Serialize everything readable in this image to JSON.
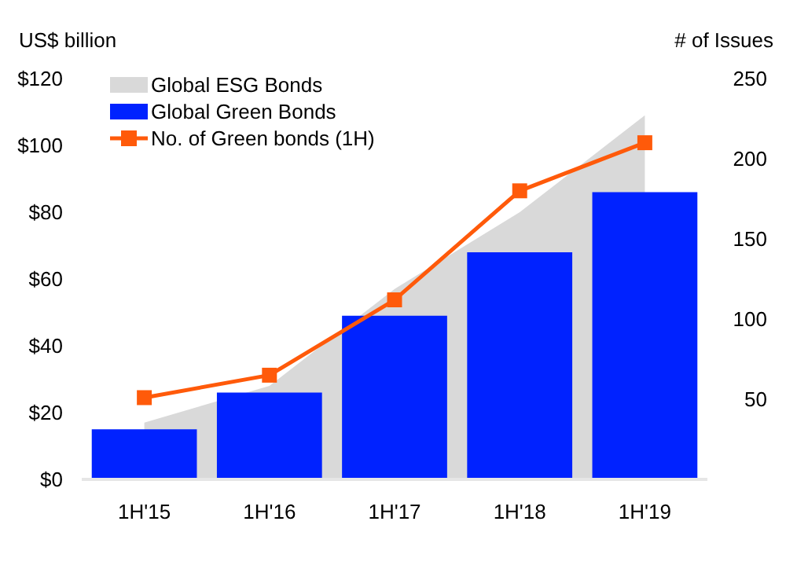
{
  "chart_data": {
    "type": "bar",
    "ylabel": "US$ billion",
    "y2label": "# of Issues",
    "categories": [
      "1H'15",
      "1H'16",
      "1H'17",
      "1H'18",
      "1H'19"
    ],
    "series": [
      {
        "name": "Global ESG Bonds",
        "type": "area",
        "color": "#d9d9d9",
        "values": [
          17,
          28,
          57,
          80,
          109
        ]
      },
      {
        "name": "Global Green Bonds",
        "color": "#0022ff",
        "values": [
          15,
          26,
          49,
          68,
          86
        ]
      },
      {
        "name": "No. of Green bonds (1H)",
        "type": "line",
        "axis": "y2",
        "marker": "square",
        "color": "#ff5a0a",
        "values": [
          51,
          65,
          112,
          180,
          210
        ]
      }
    ],
    "ylim": [
      0,
      120
    ],
    "yticks": [
      {
        "value": 0,
        "label": "$0"
      },
      {
        "value": 20,
        "label": "$20"
      },
      {
        "value": 40,
        "label": "$40"
      },
      {
        "value": 60,
        "label": "$60"
      },
      {
        "value": 80,
        "label": "$80"
      },
      {
        "value": 100,
        "label": "$100"
      },
      {
        "value": 120,
        "label": "$120"
      }
    ],
    "y2lim": [
      0,
      250
    ],
    "y2ticks": [
      50,
      100,
      150,
      200,
      250
    ],
    "legend": "top left",
    "grid": false
  }
}
